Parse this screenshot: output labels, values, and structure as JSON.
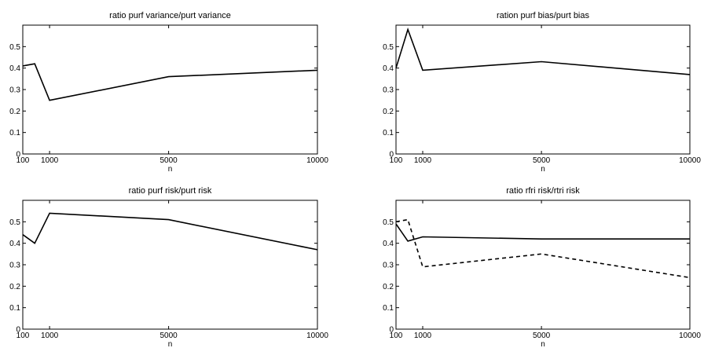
{
  "chart_data": [
    {
      "type": "line",
      "title": "ratio purf variance/purt variance",
      "xlabel": "n",
      "xlim": [
        100,
        10000
      ],
      "ylim": [
        0,
        0.6
      ],
      "xticks": [
        100,
        1000,
        5000,
        10000
      ],
      "yticks": [
        0,
        0.1,
        0.2,
        0.3,
        0.4,
        0.5
      ],
      "xtick_labels": [
        "100",
        "1000",
        "5000",
        "10000"
      ],
      "ytick_labels": [
        "0",
        "0.1",
        "0.2",
        "0.3",
        "0.4",
        "0.5"
      ],
      "series": [
        {
          "style": "solid",
          "x": [
            100,
            500,
            1000,
            5000,
            10000
          ],
          "y": [
            0.41,
            0.42,
            0.25,
            0.36,
            0.39
          ]
        }
      ]
    },
    {
      "type": "line",
      "title": "ration purf bias/purt bias",
      "xlabel": "n",
      "xlim": [
        100,
        10000
      ],
      "ylim": [
        0,
        0.6
      ],
      "xticks": [
        100,
        1000,
        5000,
        10000
      ],
      "yticks": [
        0,
        0.1,
        0.2,
        0.3,
        0.4,
        0.5
      ],
      "xtick_labels": [
        "100",
        "1000",
        "5000",
        "10000"
      ],
      "ytick_labels": [
        "0",
        "0.1",
        "0.2",
        "0.3",
        "0.4",
        "0.5"
      ],
      "series": [
        {
          "style": "solid",
          "x": [
            100,
            500,
            1000,
            5000,
            10000
          ],
          "y": [
            0.4,
            0.58,
            0.39,
            0.43,
            0.37
          ]
        }
      ]
    },
    {
      "type": "line",
      "title": "ratio purf risk/purt risk",
      "xlabel": "n",
      "xlim": [
        100,
        10000
      ],
      "ylim": [
        0,
        0.6
      ],
      "xticks": [
        100,
        1000,
        5000,
        10000
      ],
      "yticks": [
        0,
        0.1,
        0.2,
        0.3,
        0.4,
        0.5
      ],
      "xtick_labels": [
        "100",
        "1000",
        "5000",
        "10000"
      ],
      "ytick_labels": [
        "0",
        "0.1",
        "0.2",
        "0.3",
        "0.4",
        "0.5"
      ],
      "series": [
        {
          "style": "solid",
          "x": [
            100,
            500,
            1000,
            5000,
            10000
          ],
          "y": [
            0.44,
            0.4,
            0.54,
            0.51,
            0.37
          ]
        }
      ]
    },
    {
      "type": "line",
      "title": "ratio rfri risk/rtri risk",
      "xlabel": "n",
      "xlim": [
        100,
        10000
      ],
      "ylim": [
        0,
        0.6
      ],
      "xticks": [
        100,
        1000,
        5000,
        10000
      ],
      "yticks": [
        0,
        0.1,
        0.2,
        0.3,
        0.4,
        0.5
      ],
      "xtick_labels": [
        "100",
        "1000",
        "5000",
        "10000"
      ],
      "ytick_labels": [
        "0",
        "0.1",
        "0.2",
        "0.3",
        "0.4",
        "0.5"
      ],
      "series": [
        {
          "style": "solid",
          "x": [
            100,
            500,
            1000,
            5000,
            10000
          ],
          "y": [
            0.49,
            0.41,
            0.43,
            0.42,
            0.42
          ]
        },
        {
          "style": "dashed",
          "x": [
            100,
            500,
            1000,
            5000,
            10000
          ],
          "y": [
            0.5,
            0.51,
            0.29,
            0.35,
            0.24
          ]
        }
      ]
    }
  ]
}
